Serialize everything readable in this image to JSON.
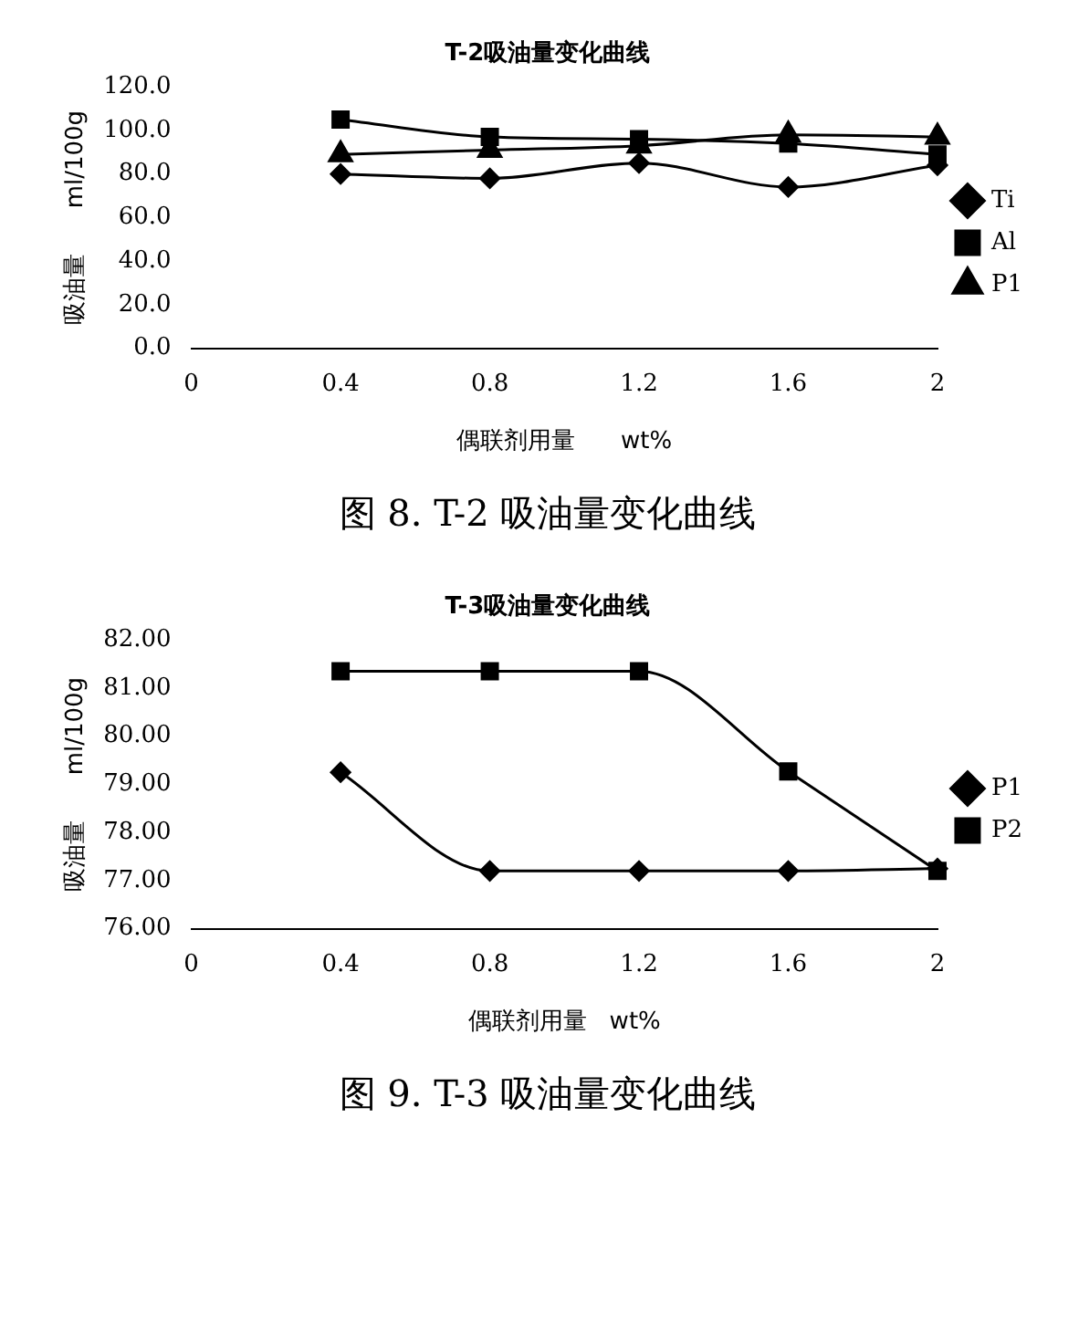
{
  "chart_data": [
    {
      "type": "line",
      "title": "T-2吸油量变化曲线",
      "xlabel": "偶联剂用量      wt%",
      "ylabel": "吸油量      ml/100g",
      "categories": [
        "0",
        "0.4",
        "0.8",
        "1.2",
        "1.6",
        "2"
      ],
      "ylim": [
        0,
        120
      ],
      "yticks": [
        {
          "value": 0,
          "label": "0.0"
        },
        {
          "value": 20,
          "label": "20.0"
        },
        {
          "value": 40,
          "label": "40.0"
        },
        {
          "value": 60,
          "label": "60.0"
        },
        {
          "value": 80,
          "label": "80.0"
        },
        {
          "value": 100,
          "label": "100.0"
        },
        {
          "value": 120,
          "label": "120.0"
        }
      ],
      "grid": false,
      "legend": "right",
      "line_style": "solid",
      "annotations": [
        "图 8. T-2 吸油量变化曲线"
      ],
      "series": [
        {
          "name": "Ti",
          "color": "#000000",
          "marker": "diamond",
          "values": [
            null,
            80,
            78,
            85,
            74,
            84
          ]
        },
        {
          "name": "Al",
          "color": "#000000",
          "marker": "square",
          "values": [
            null,
            105,
            97,
            96,
            94,
            89
          ]
        },
        {
          "name": "P1",
          "color": "#000000",
          "marker": "triangle",
          "values": [
            null,
            89,
            91,
            93,
            98,
            97
          ]
        }
      ]
    },
    {
      "type": "line",
      "title": "T-3吸油量变化曲线",
      "xlabel": "偶联剂用量   wt%",
      "ylabel": "吸油量      ml/100g",
      "categories": [
        "0",
        "0.4",
        "0.8",
        "1.2",
        "1.6",
        "2"
      ],
      "ylim": [
        76,
        82
      ],
      "yticks": [
        {
          "value": 76,
          "label": "76.00"
        },
        {
          "value": 77,
          "label": "77.00"
        },
        {
          "value": 78,
          "label": "78.00"
        },
        {
          "value": 79,
          "label": "79.00"
        },
        {
          "value": 80,
          "label": "80.00"
        },
        {
          "value": 81,
          "label": "81.00"
        },
        {
          "value": 82,
          "label": "82.00"
        }
      ],
      "grid": false,
      "legend": "right",
      "line_style": "solid",
      "annotations": [
        "图 9. T-3 吸油量变化曲线"
      ],
      "series": [
        {
          "name": "P1",
          "color": "#000000",
          "marker": "diamond",
          "values": [
            null,
            79.25,
            77.2,
            77.2,
            77.2,
            77.25
          ]
        },
        {
          "name": "P2",
          "color": "#000000",
          "marker": "square",
          "values": [
            null,
            81.35,
            81.35,
            81.35,
            79.27,
            77.2
          ]
        }
      ]
    }
  ]
}
